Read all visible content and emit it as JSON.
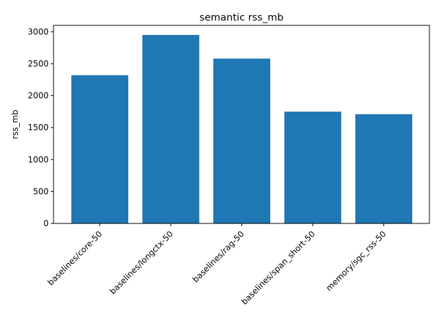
{
  "chart_data": {
    "type": "bar",
    "title": "semantic rss_mb",
    "xlabel": "",
    "ylabel": "rss_mb",
    "categories": [
      "baselines/core-50",
      "baselines/longctx-50",
      "baselines/rag-50",
      "baselines/span_short-50",
      "memory/sgc_rss-50"
    ],
    "values": [
      2320,
      2950,
      2580,
      1750,
      1710
    ],
    "ylim": [
      0,
      3100
    ],
    "yticks": [
      0,
      500,
      1000,
      1500,
      2000,
      2500,
      3000
    ],
    "grid": false,
    "bar_color": "#1f77b4"
  }
}
